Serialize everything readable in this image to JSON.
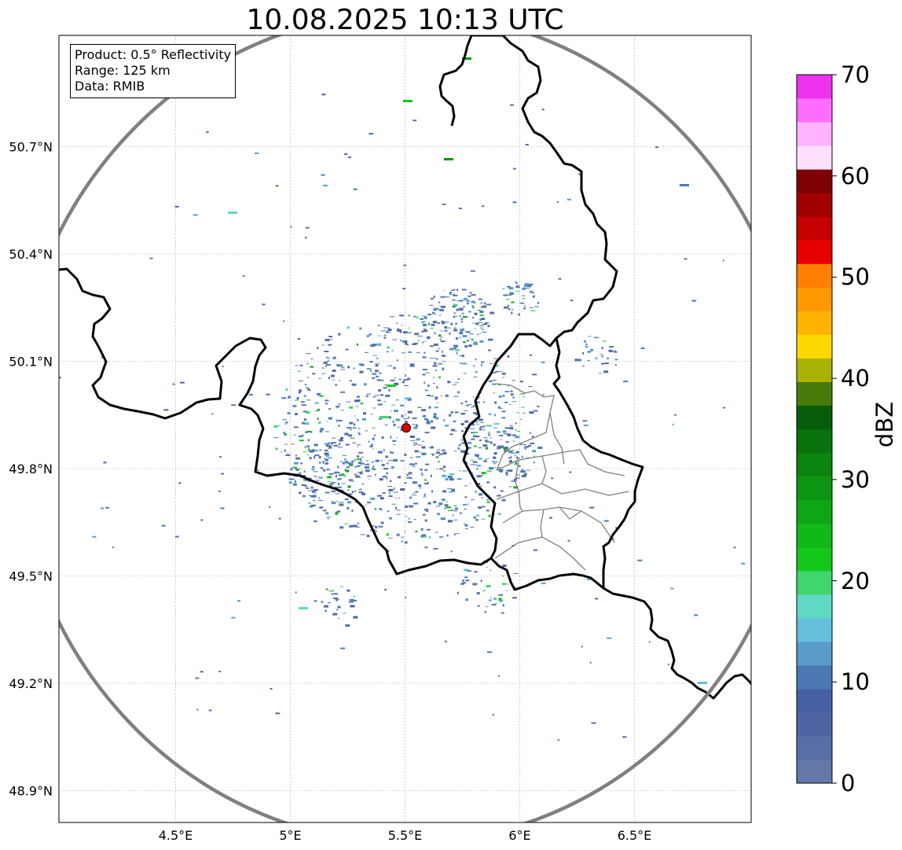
{
  "title": "10.08.2025 10:13 UTC",
  "info_box": {
    "product": "Product: 0.5° Reflectivity",
    "range": "Range: 125 km",
    "data_source": "Data: RMIB"
  },
  "map": {
    "lon_range": [
      4.0,
      7.0
    ],
    "lat_range": [
      48.8,
      51.0
    ],
    "lon_ticks": [
      {
        "value": 4.5,
        "label": "4.5°E"
      },
      {
        "value": 5.0,
        "label": "5°E"
      },
      {
        "value": 5.5,
        "label": "5.5°E"
      },
      {
        "value": 6.0,
        "label": "6°E"
      },
      {
        "value": 6.5,
        "label": "6.5°E"
      }
    ],
    "lat_ticks": [
      {
        "value": 50.7,
        "label": "50.7°N"
      },
      {
        "value": 50.4,
        "label": "50.4°N"
      },
      {
        "value": 50.1,
        "label": "50.1°N"
      },
      {
        "value": 49.8,
        "label": "49.8°N"
      },
      {
        "value": 49.5,
        "label": "49.5°N"
      },
      {
        "value": 49.2,
        "label": "49.2°N"
      },
      {
        "value": 48.9,
        "label": "48.9°N"
      }
    ],
    "radar_site": {
      "lon": 5.505,
      "lat": 49.914
    },
    "range_ring_color": "#808080",
    "site_color": "#e00000",
    "border_color": "#000000",
    "subdivision_color": "#808080"
  },
  "colorbar": {
    "label": "dBZ",
    "min": 0,
    "max": 70,
    "step": 2.5,
    "ticks": [
      "0",
      "10",
      "20",
      "30",
      "40",
      "50",
      "60",
      "70"
    ],
    "colors": [
      "#6577a8",
      "#5a6ea6",
      "#4f65a3",
      "#4561a4",
      "#4a79b3",
      "#5a9cc9",
      "#66c0dd",
      "#5fd9c4",
      "#3fd66e",
      "#13c81b",
      "#10b818",
      "#0fa615",
      "#0c9512",
      "#0b850f",
      "#08720c",
      "#055d09",
      "#497a0a",
      "#aab205",
      "#ffd800",
      "#ffb400",
      "#ff9900",
      "#ff7f00",
      "#e60000",
      "#c40000",
      "#a20000",
      "#7f0000",
      "#ffe1ff",
      "#ffb3ff",
      "#ff6dff",
      "#ee33ee"
    ]
  }
}
